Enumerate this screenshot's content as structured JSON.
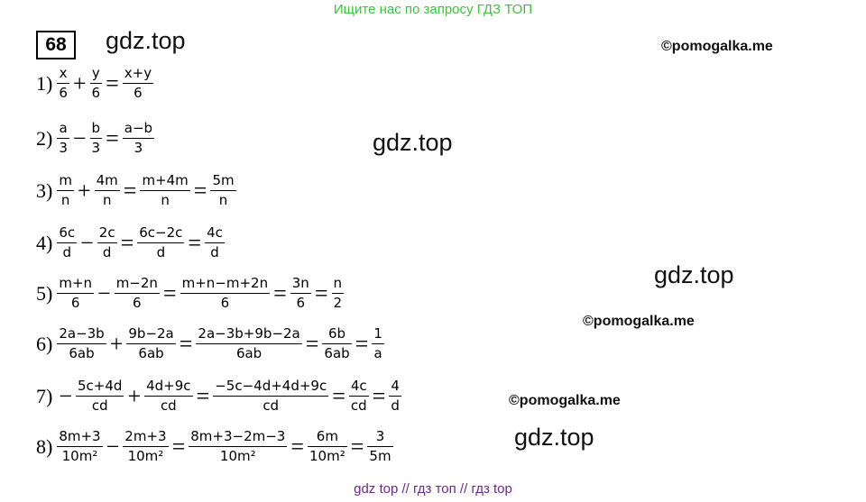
{
  "banner": "Ищите нас по запросу ГДЗ ТОП",
  "task_number": "68",
  "watermarks": [
    "gdz.top",
    "gdz.top",
    "gdz.top",
    "gdz.top"
  ],
  "copyrights": [
    "©pomogalka.me",
    "©pomogalka.me",
    "©pomogalka.me"
  ],
  "lines": [
    {
      "label": "1)",
      "parts": [
        {
          "n": "x",
          "d": "6"
        },
        "+",
        {
          "n": "y",
          "d": "6"
        },
        "=",
        {
          "n": "x+y",
          "d": "6"
        }
      ]
    },
    {
      "label": "2)",
      "parts": [
        {
          "n": "a",
          "d": "3"
        },
        "−",
        {
          "n": "b",
          "d": "3"
        },
        "=",
        {
          "n": "a−b",
          "d": "3"
        }
      ]
    },
    {
      "label": "3)",
      "parts": [
        {
          "n": "m",
          "d": "n"
        },
        "+",
        {
          "n": "4m",
          "d": "n"
        },
        "=",
        {
          "n": "m+4m",
          "d": "n"
        },
        "=",
        {
          "n": "5m",
          "d": "n"
        }
      ]
    },
    {
      "label": "4)",
      "parts": [
        {
          "n": "6c",
          "d": "d"
        },
        "−",
        {
          "n": "2c",
          "d": "d"
        },
        "=",
        {
          "n": "6c−2c",
          "d": "d"
        },
        "=",
        {
          "n": "4c",
          "d": "d"
        }
      ]
    },
    {
      "label": "5)",
      "parts": [
        {
          "n": "m+n",
          "d": "6"
        },
        "−",
        {
          "n": "m−2n",
          "d": "6"
        },
        "=",
        {
          "n": "m+n−m+2n",
          "d": "6"
        },
        "=",
        {
          "n": "3n",
          "d": "6"
        },
        "=",
        {
          "n": "n",
          "d": "2"
        }
      ]
    },
    {
      "label": "6)",
      "parts": [
        {
          "n": "2a−3b",
          "d": "6ab"
        },
        "+",
        {
          "n": "9b−2a",
          "d": "6ab"
        },
        "=",
        {
          "n": "2a−3b+9b−2a",
          "d": "6ab"
        },
        "=",
        {
          "n": "6b",
          "d": "6ab"
        },
        "=",
        {
          "n": "1",
          "d": "a"
        }
      ]
    },
    {
      "label": "7)",
      "parts": [
        "−",
        {
          "n": "5c+4d",
          "d": "cd"
        },
        "+",
        {
          "n": "4d+9c",
          "d": "cd"
        },
        "=",
        {
          "n": "−5c−4d+4d+9c",
          "d": "cd"
        },
        "=",
        {
          "n": "4c",
          "d": "cd"
        },
        "=",
        {
          "n": "4",
          "d": "d"
        }
      ]
    },
    {
      "label": "8)",
      "parts": [
        {
          "n": "8m+3",
          "d": "10m²"
        },
        "−",
        {
          "n": "2m+3",
          "d": "10m²"
        },
        "=",
        {
          "n": "8m+3−2m−3",
          "d": "10m²"
        },
        "=",
        {
          "n": "6m",
          "d": "10m²"
        },
        "=",
        {
          "n": "3",
          "d": "5m"
        }
      ]
    }
  ],
  "footer": "gdz top  //  гдз топ  //  гдз top"
}
